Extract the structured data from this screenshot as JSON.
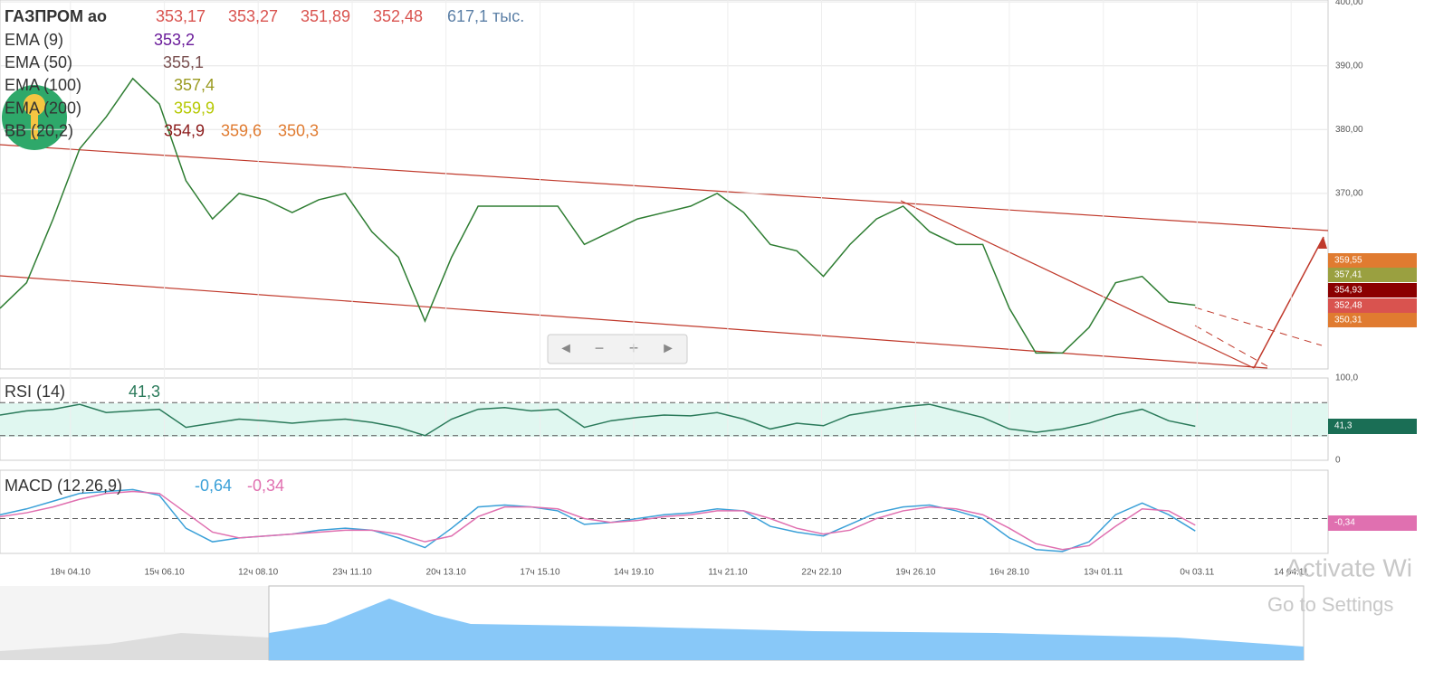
{
  "header": {
    "ticker": "ГАЗПРОМ ао",
    "ohlc": [
      "353,17",
      "353,27",
      "351,89",
      "352,48"
    ],
    "volume": "617,1 тыс.",
    "indicators": [
      {
        "name": "EMA (9)",
        "values": [
          "353,2"
        ]
      },
      {
        "name": "EMA (50)",
        "values": [
          "355,1"
        ]
      },
      {
        "name": "EMA (100)",
        "values": [
          "357,4"
        ]
      },
      {
        "name": "EMA (200)",
        "values": [
          "359,9"
        ]
      },
      {
        "name": "BB (20,2)",
        "values": [
          "354,9",
          "359,6",
          "350,3"
        ]
      }
    ],
    "rsi": {
      "name": "RSI (14)",
      "values": [
        "41,3"
      ]
    },
    "macd": {
      "name": "MACD (12,26,9)",
      "values": [
        "-0,64",
        "-0,34"
      ]
    }
  },
  "price_tags": [
    "359,55",
    "357,41",
    "354,93",
    "352,48",
    "350,31"
  ],
  "rsi_tag": "41,3",
  "macd_tag": "-0,34",
  "watermark": [
    "Activate Wi",
    "Go to Settings"
  ],
  "chart_data": [
    {
      "type": "line",
      "xlim": [
        0,
        50
      ],
      "ylim": [
        342.5,
        400.3
      ],
      "yticks": [
        {
          "value": 400,
          "label": "400,00"
        },
        {
          "value": 390,
          "label": "390,00"
        },
        {
          "value": 380,
          "label": "380,00"
        },
        {
          "value": 370,
          "label": "370,00"
        }
      ],
      "xticks": [
        {
          "value": 2.65,
          "label": "18ч 04.10"
        },
        {
          "value": 6.19,
          "label": "15ч 06.10"
        },
        {
          "value": 9.72,
          "label": "12ч 08.10"
        },
        {
          "value": 13.26,
          "label": "23ч 11.10"
        },
        {
          "value": 16.79,
          "label": "20ч 13.10"
        },
        {
          "value": 20.33,
          "label": "17ч 15.10"
        },
        {
          "value": 23.86,
          "label": "14ч 19.10"
        },
        {
          "value": 27.4,
          "label": "11ч 21.10"
        },
        {
          "value": 30.93,
          "label": "22ч 22.10"
        },
        {
          "value": 34.47,
          "label": "19ч 26.10"
        },
        {
          "value": 38,
          "label": "16ч 28.10"
        },
        {
          "value": 41.54,
          "label": "13ч 01.11"
        },
        {
          "value": 45.07,
          "label": "0ч 03.11"
        },
        {
          "value": 48.61,
          "label": "14 04.11"
        }
      ],
      "x": [
        0,
        1,
        2,
        3,
        4,
        5,
        6,
        7,
        8,
        9,
        10,
        11,
        12,
        13,
        14,
        15,
        16,
        17,
        18,
        19,
        20,
        21,
        22,
        23,
        24,
        25,
        26,
        27,
        28,
        29,
        30,
        31,
        32,
        33,
        34,
        35,
        36,
        37,
        38,
        39,
        40,
        41,
        42,
        43,
        44,
        45
      ],
      "series": [
        {
          "color": "#2e7d32",
          "values": [
            352,
            356,
            366,
            377,
            382,
            388,
            384,
            372,
            366,
            370,
            369,
            367,
            369,
            370,
            364,
            360,
            350,
            360,
            368,
            368,
            368,
            368,
            362,
            364,
            366,
            367,
            368,
            370,
            367,
            362,
            361,
            357,
            362,
            366,
            368,
            364,
            362,
            362,
            352,
            345,
            345,
            349,
            356,
            357,
            353,
            352.48
          ]
        }
      ],
      "grid": true
    },
    {
      "type": "line",
      "xlim": [
        0,
        50
      ],
      "ylim": [
        0,
        100
      ],
      "yticks": [
        {
          "value": 100,
          "label": "100,0"
        },
        0
      ],
      "levels": [
        30,
        70
      ],
      "x": [
        0,
        1,
        2,
        3,
        4,
        5,
        6,
        7,
        8,
        9,
        10,
        11,
        12,
        13,
        14,
        15,
        16,
        17,
        18,
        19,
        20,
        21,
        22,
        23,
        24,
        25,
        26,
        27,
        28,
        29,
        30,
        31,
        32,
        33,
        34,
        35,
        36,
        37,
        38,
        39,
        40,
        41,
        42,
        43,
        44,
        45
      ],
      "series": [
        {
          "color": "#2a7a5a",
          "values": [
            55,
            60,
            62,
            68,
            58,
            60,
            62,
            40,
            45,
            50,
            48,
            45,
            48,
            50,
            46,
            40,
            30,
            50,
            62,
            64,
            60,
            62,
            40,
            48,
            52,
            55,
            54,
            58,
            50,
            38,
            45,
            42,
            55,
            60,
            65,
            68,
            60,
            52,
            38,
            34,
            38,
            45,
            55,
            62,
            48,
            41.3
          ]
        }
      ]
    },
    {
      "type": "line",
      "xlim": [
        0,
        50
      ],
      "ylim": [
        -1.8,
        2.5
      ],
      "levels": [
        0
      ],
      "x": [
        0,
        1,
        2,
        3,
        4,
        5,
        6,
        7,
        8,
        9,
        10,
        11,
        12,
        13,
        14,
        15,
        16,
        17,
        18,
        19,
        20,
        21,
        22,
        23,
        24,
        25,
        26,
        27,
        28,
        29,
        30,
        31,
        32,
        33,
        34,
        35,
        36,
        37,
        38,
        39,
        40,
        41,
        42,
        43,
        44,
        45
      ],
      "series": [
        {
          "color": "#3aa0d8",
          "values": [
            0.2,
            0.5,
            0.9,
            1.3,
            1.4,
            1.5,
            1.2,
            -0.5,
            -1.2,
            -1.0,
            -0.9,
            -0.8,
            -0.6,
            -0.5,
            -0.6,
            -1.0,
            -1.5,
            -0.5,
            0.6,
            0.7,
            0.6,
            0.4,
            -0.3,
            -0.2,
            0,
            0.2,
            0.3,
            0.5,
            0.4,
            -0.4,
            -0.7,
            -0.9,
            -0.3,
            0.3,
            0.6,
            0.7,
            0.4,
            0,
            -1.0,
            -1.6,
            -1.7,
            -1.2,
            0.2,
            0.8,
            0.2,
            -0.64
          ]
        },
        {
          "color": "#e070b0",
          "values": [
            0.1,
            0.3,
            0.6,
            1.0,
            1.3,
            1.4,
            1.3,
            0.3,
            -0.7,
            -1.0,
            -0.9,
            -0.8,
            -0.7,
            -0.6,
            -0.6,
            -0.8,
            -1.2,
            -0.9,
            0.1,
            0.6,
            0.6,
            0.5,
            0,
            -0.2,
            -0.1,
            0.1,
            0.2,
            0.4,
            0.4,
            0,
            -0.5,
            -0.8,
            -0.6,
            0,
            0.4,
            0.6,
            0.5,
            0.2,
            -0.5,
            -1.3,
            -1.6,
            -1.4,
            -0.4,
            0.5,
            0.4,
            -0.34
          ]
        }
      ]
    }
  ]
}
